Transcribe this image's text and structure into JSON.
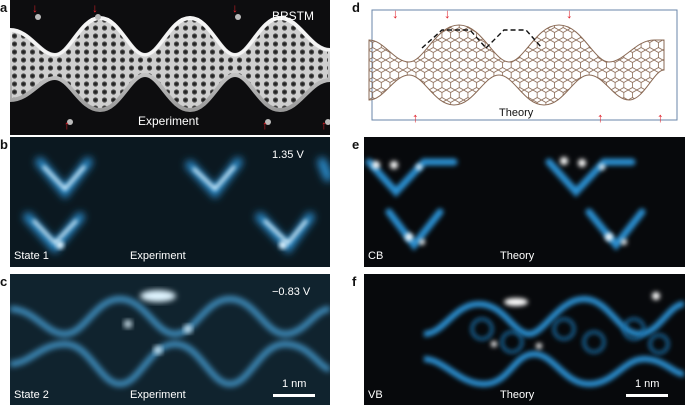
{
  "figure": {
    "panels": {
      "a": {
        "letter": "a",
        "tag": "BRSTM",
        "caption": "Experiment"
      },
      "b": {
        "letter": "b",
        "voltage": "1.35 V",
        "state": "State 1",
        "caption": "Experiment"
      },
      "c": {
        "letter": "c",
        "voltage": "−0.83 V",
        "state": "State 2",
        "caption": "Experiment",
        "scale_label": "1 nm"
      },
      "d": {
        "letter": "d",
        "caption": "Theory"
      },
      "e": {
        "letter": "e",
        "band": "CB",
        "caption": "Theory"
      },
      "f": {
        "letter": "f",
        "band": "VB",
        "caption": "Theory",
        "scale_label": "1 nm"
      }
    },
    "colors": {
      "stm_bg": "#0d0d0f",
      "stm_ribbon": "#e6e6e6",
      "ldos_bg": "#0b1820",
      "ldos_glow": "#2a8fd0",
      "ldos_hot": "#dff4ff",
      "theory_bg": "#07090c",
      "lattice": "#8a6a55",
      "arrow": "#e0202a"
    }
  }
}
